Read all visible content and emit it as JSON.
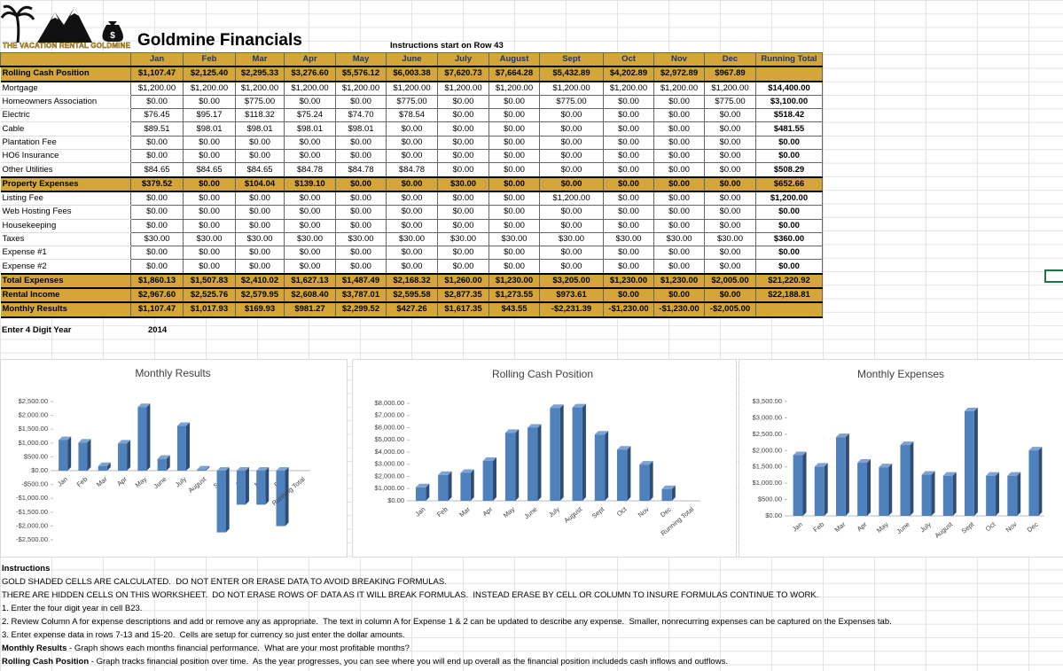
{
  "header": {
    "logo_text": "THE VACATION RENTAL GOLDMINE",
    "title": "Goldmine Financials",
    "note": "Instructions start on Row 43"
  },
  "table": {
    "columns": [
      "Jan",
      "Feb",
      "Mar",
      "Apr",
      "May",
      "June",
      "July",
      "August",
      "Sept",
      "Oct",
      "Nov",
      "Dec",
      "Running Total"
    ],
    "rows": [
      {
        "label": "Rolling Cash Position",
        "highlight": true,
        "cells": [
          "$1,107.47",
          "$2,125.40",
          "$2,295.33",
          "$3,276.60",
          "$5,576.12",
          "$6,003.38",
          "$7,620.73",
          "$7,664.28",
          "$5,432.89",
          "$4,202.89",
          "$2,972.89",
          "$967.89"
        ]
      },
      {
        "label": "Mortgage",
        "highlight": false,
        "cells": [
          "$1,200.00",
          "$1,200.00",
          "$1,200.00",
          "$1,200.00",
          "$1,200.00",
          "$1,200.00",
          "$1,200.00",
          "$1,200.00",
          "$1,200.00",
          "$1,200.00",
          "$1,200.00",
          "$1,200.00"
        ],
        "total": "$14,400.00"
      },
      {
        "label": "Homeowners Association",
        "highlight": false,
        "cells": [
          "$0.00",
          "$0.00",
          "$775.00",
          "$0.00",
          "$0.00",
          "$775.00",
          "$0.00",
          "$0.00",
          "$775.00",
          "$0.00",
          "$0.00",
          "$775.00"
        ],
        "total": "$3,100.00"
      },
      {
        "label": "Electric",
        "highlight": false,
        "cells": [
          "$76.45",
          "$95.17",
          "$118.32",
          "$75.24",
          "$74.70",
          "$78.54",
          "$0.00",
          "$0.00",
          "$0.00",
          "$0.00",
          "$0.00",
          "$0.00"
        ],
        "total": "$518.42"
      },
      {
        "label": "Cable",
        "highlight": false,
        "cells": [
          "$89.51",
          "$98.01",
          "$98.01",
          "$98.01",
          "$98.01",
          "$0.00",
          "$0.00",
          "$0.00",
          "$0.00",
          "$0.00",
          "$0.00",
          "$0.00"
        ],
        "total": "$481.55"
      },
      {
        "label": "Plantation Fee",
        "highlight": false,
        "cells": [
          "$0.00",
          "$0.00",
          "$0.00",
          "$0.00",
          "$0.00",
          "$0.00",
          "$0.00",
          "$0.00",
          "$0.00",
          "$0.00",
          "$0.00",
          "$0.00"
        ],
        "total": "$0.00"
      },
      {
        "label": "HO6 Insurance",
        "highlight": false,
        "cells": [
          "$0.00",
          "$0.00",
          "$0.00",
          "$0.00",
          "$0.00",
          "$0.00",
          "$0.00",
          "$0.00",
          "$0.00",
          "$0.00",
          "$0.00",
          "$0.00"
        ],
        "total": "$0.00"
      },
      {
        "label": "Other Utilities",
        "highlight": false,
        "cells": [
          "$84.65",
          "$84.65",
          "$84.65",
          "$84.78",
          "$84.78",
          "$84.78",
          "$0.00",
          "$0.00",
          "$0.00",
          "$0.00",
          "$0.00",
          "$0.00"
        ],
        "total": "$508.29"
      },
      {
        "label": "Property Expenses",
        "highlight": true,
        "cells": [
          "$379.52",
          "$0.00",
          "$104.04",
          "$139.10",
          "$0.00",
          "$0.00",
          "$30.00",
          "$0.00",
          "$0.00",
          "$0.00",
          "$0.00",
          "$0.00"
        ],
        "total": "$652.66"
      },
      {
        "label": "Listing Fee",
        "highlight": false,
        "cells": [
          "$0.00",
          "$0.00",
          "$0.00",
          "$0.00",
          "$0.00",
          "$0.00",
          "$0.00",
          "$0.00",
          "$1,200.00",
          "$0.00",
          "$0.00",
          "$0.00"
        ],
        "total": "$1,200.00"
      },
      {
        "label": "Web Hosting Fees",
        "highlight": false,
        "cells": [
          "$0.00",
          "$0.00",
          "$0.00",
          "$0.00",
          "$0.00",
          "$0.00",
          "$0.00",
          "$0.00",
          "$0.00",
          "$0.00",
          "$0.00",
          "$0.00"
        ],
        "total": "$0.00"
      },
      {
        "label": "Housekeeping",
        "highlight": false,
        "cells": [
          "$0.00",
          "$0.00",
          "$0.00",
          "$0.00",
          "$0.00",
          "$0.00",
          "$0.00",
          "$0.00",
          "$0.00",
          "$0.00",
          "$0.00",
          "$0.00"
        ],
        "total": "$0.00"
      },
      {
        "label": "Taxes",
        "highlight": false,
        "cells": [
          "$30.00",
          "$30.00",
          "$30.00",
          "$30.00",
          "$30.00",
          "$30.00",
          "$30.00",
          "$30.00",
          "$30.00",
          "$30.00",
          "$30.00",
          "$30.00"
        ],
        "total": "$360.00"
      },
      {
        "label": "Expense #1",
        "highlight": false,
        "cells": [
          "$0.00",
          "$0.00",
          "$0.00",
          "$0.00",
          "$0.00",
          "$0.00",
          "$0.00",
          "$0.00",
          "$0.00",
          "$0.00",
          "$0.00",
          "$0.00"
        ],
        "total": "$0.00"
      },
      {
        "label": "Expense #2",
        "highlight": false,
        "cells": [
          "$0.00",
          "$0.00",
          "$0.00",
          "$0.00",
          "$0.00",
          "$0.00",
          "$0.00",
          "$0.00",
          "$0.00",
          "$0.00",
          "$0.00",
          "$0.00"
        ],
        "total": "$0.00"
      },
      {
        "label": "Total Expenses",
        "highlight": true,
        "cells": [
          "$1,860.13",
          "$1,507.83",
          "$2,410.02",
          "$1,627.13",
          "$1,487.49",
          "$2,168.32",
          "$1,260.00",
          "$1,230.00",
          "$3,205.00",
          "$1,230.00",
          "$1,230.00",
          "$2,005.00"
        ],
        "total": "$21,220.92"
      },
      {
        "label": "Rental Income",
        "highlight": true,
        "cells": [
          "$2,967.60",
          "$2,525.76",
          "$2,579.95",
          "$2,608.40",
          "$3,787.01",
          "$2,595.58",
          "$2,877.35",
          "$1,273.55",
          "$973.61",
          "$0.00",
          "$0.00",
          "$0.00"
        ],
        "total": "$22,188.81"
      },
      {
        "label": "Monthly Results",
        "highlight": true,
        "cells": [
          "$1,107.47",
          "$1,017.93",
          "$169.93",
          "$981.27",
          "$2,299.52",
          "$427.26",
          "$1,617.35",
          "$43.55",
          "-$2,231.39",
          "-$1,230.00",
          "-$1,230.00",
          "-$2,005.00"
        ]
      }
    ]
  },
  "year": {
    "label": "Enter 4 Digit Year",
    "value": 2014
  },
  "chart_data": [
    {
      "type": "bar",
      "title": "Monthly Results",
      "color": "#4f81bd",
      "categories": [
        "Jan",
        "Feb",
        "Mar",
        "Apr",
        "May",
        "June",
        "July",
        "August",
        "Sept",
        "Oct",
        "Nov",
        "Dec",
        "Running Total"
      ],
      "values": [
        1107.47,
        1017.93,
        169.93,
        981.27,
        2299.52,
        427.26,
        1617.35,
        43.55,
        -2231.39,
        -1230,
        -1230,
        -2005,
        null
      ],
      "ylim": [
        -2500,
        2500
      ],
      "yticks": [
        {
          "value": -2500,
          "label": "-$2,500.00"
        },
        {
          "value": -2000,
          "label": "-$2,000.00"
        },
        {
          "value": -1500,
          "label": "-$1,500.00"
        },
        {
          "value": -1000,
          "label": "-$1,000.00"
        },
        {
          "value": -500,
          "label": "-$500.00"
        },
        {
          "value": 0,
          "label": "$0.00"
        },
        {
          "value": 500,
          "label": "$500.00"
        },
        {
          "value": 1000,
          "label": "$1,000.00"
        },
        {
          "value": 1500,
          "label": "$1,500.00"
        },
        {
          "value": 2000,
          "label": "$2,000.00"
        },
        {
          "value": 2500,
          "label": "$2,500.00"
        }
      ]
    },
    {
      "type": "bar",
      "title": "Rolling Cash Position",
      "color": "#4f81bd",
      "categories": [
        "Jan",
        "Feb",
        "Mar",
        "Apr",
        "May",
        "June",
        "July",
        "August",
        "Sept",
        "Oct",
        "Nov",
        "Dec",
        "Running Total"
      ],
      "values": [
        1107.47,
        2125.4,
        2295.33,
        3276.6,
        5576.12,
        6003.38,
        7620.73,
        7664.28,
        5432.89,
        4202.89,
        2972.89,
        967.89,
        null
      ],
      "ylim": [
        0,
        8000
      ],
      "yticks": [
        {
          "value": 0,
          "label": "$0.00"
        },
        {
          "value": 1000,
          "label": "$1,000.00"
        },
        {
          "value": 2000,
          "label": "$2,000.00"
        },
        {
          "value": 3000,
          "label": "$3,000.00"
        },
        {
          "value": 4000,
          "label": "$4,000.00"
        },
        {
          "value": 5000,
          "label": "$5,000.00"
        },
        {
          "value": 6000,
          "label": "$6,000.00"
        },
        {
          "value": 7000,
          "label": "$7,000.00"
        },
        {
          "value": 8000,
          "label": "$8,000.00"
        }
      ]
    },
    {
      "type": "bar",
      "title": "Monthly Expenses",
      "color": "#4f81bd",
      "categories": [
        "Jan",
        "Feb",
        "Mar",
        "Apr",
        "May",
        "June",
        "July",
        "August",
        "Sept",
        "Oct",
        "Nov",
        "Dec"
      ],
      "values": [
        1860.13,
        1507.83,
        2410.02,
        1627.13,
        1487.49,
        2168.32,
        1260.0,
        1230.0,
        3205.0,
        1230.0,
        1230.0,
        2005.0
      ],
      "ylim": [
        0,
        3500
      ],
      "yticks": [
        {
          "value": 0,
          "label": "$0.00"
        },
        {
          "value": 500,
          "label": "$500.00"
        },
        {
          "value": 1000,
          "label": "$1,000.00"
        },
        {
          "value": 1500,
          "label": "$1,500.00"
        },
        {
          "value": 2000,
          "label": "$2,000.00"
        },
        {
          "value": 2500,
          "label": "$2,500.00"
        },
        {
          "value": 3000,
          "label": "$3,000.00"
        },
        {
          "value": 3500,
          "label": "$3,500.00"
        }
      ]
    }
  ],
  "instructions": {
    "title": "Instructions",
    "lines": [
      "GOLD SHADED CELLS ARE CALCULATED.  DO NOT ENTER OR ERASE DATA TO AVOID BREAKING FORMULAS.",
      "THERE ARE HIDDEN CELLS ON THIS WORKSHEET.  DO NOT ERASE ROWS OF DATA AS IT WILL BREAK FORMULAS.  INSTEAD ERASE BY CELL OR COLUMN TO INSURE FORMULAS CONTINUE TO WORK.",
      "1. Enter the four digit year in cell B23.",
      "2. Review Column A for expense descriptions and add or remove any as appropriate.  The text in column A for Expense 1 & 2 can be updated to describe any expense.  Smaller, nonrecurring expenses can be captured on the Expenses tab.",
      "3. Enter expense data in rows 7-13 and 15-20.  Cells are setup for currency so just enter the dollar amounts."
    ],
    "notes": [
      {
        "label": "Monthly Results",
        "text": "- Graph shows each months financial performance.  What are your most profitable months?"
      },
      {
        "label": "Rolling Cash Position",
        "text": "- Graph tracks financial position over time.  As the year progresses, you can see where you will end up overall as the financial position includeds cash inflows and outflows."
      }
    ]
  }
}
